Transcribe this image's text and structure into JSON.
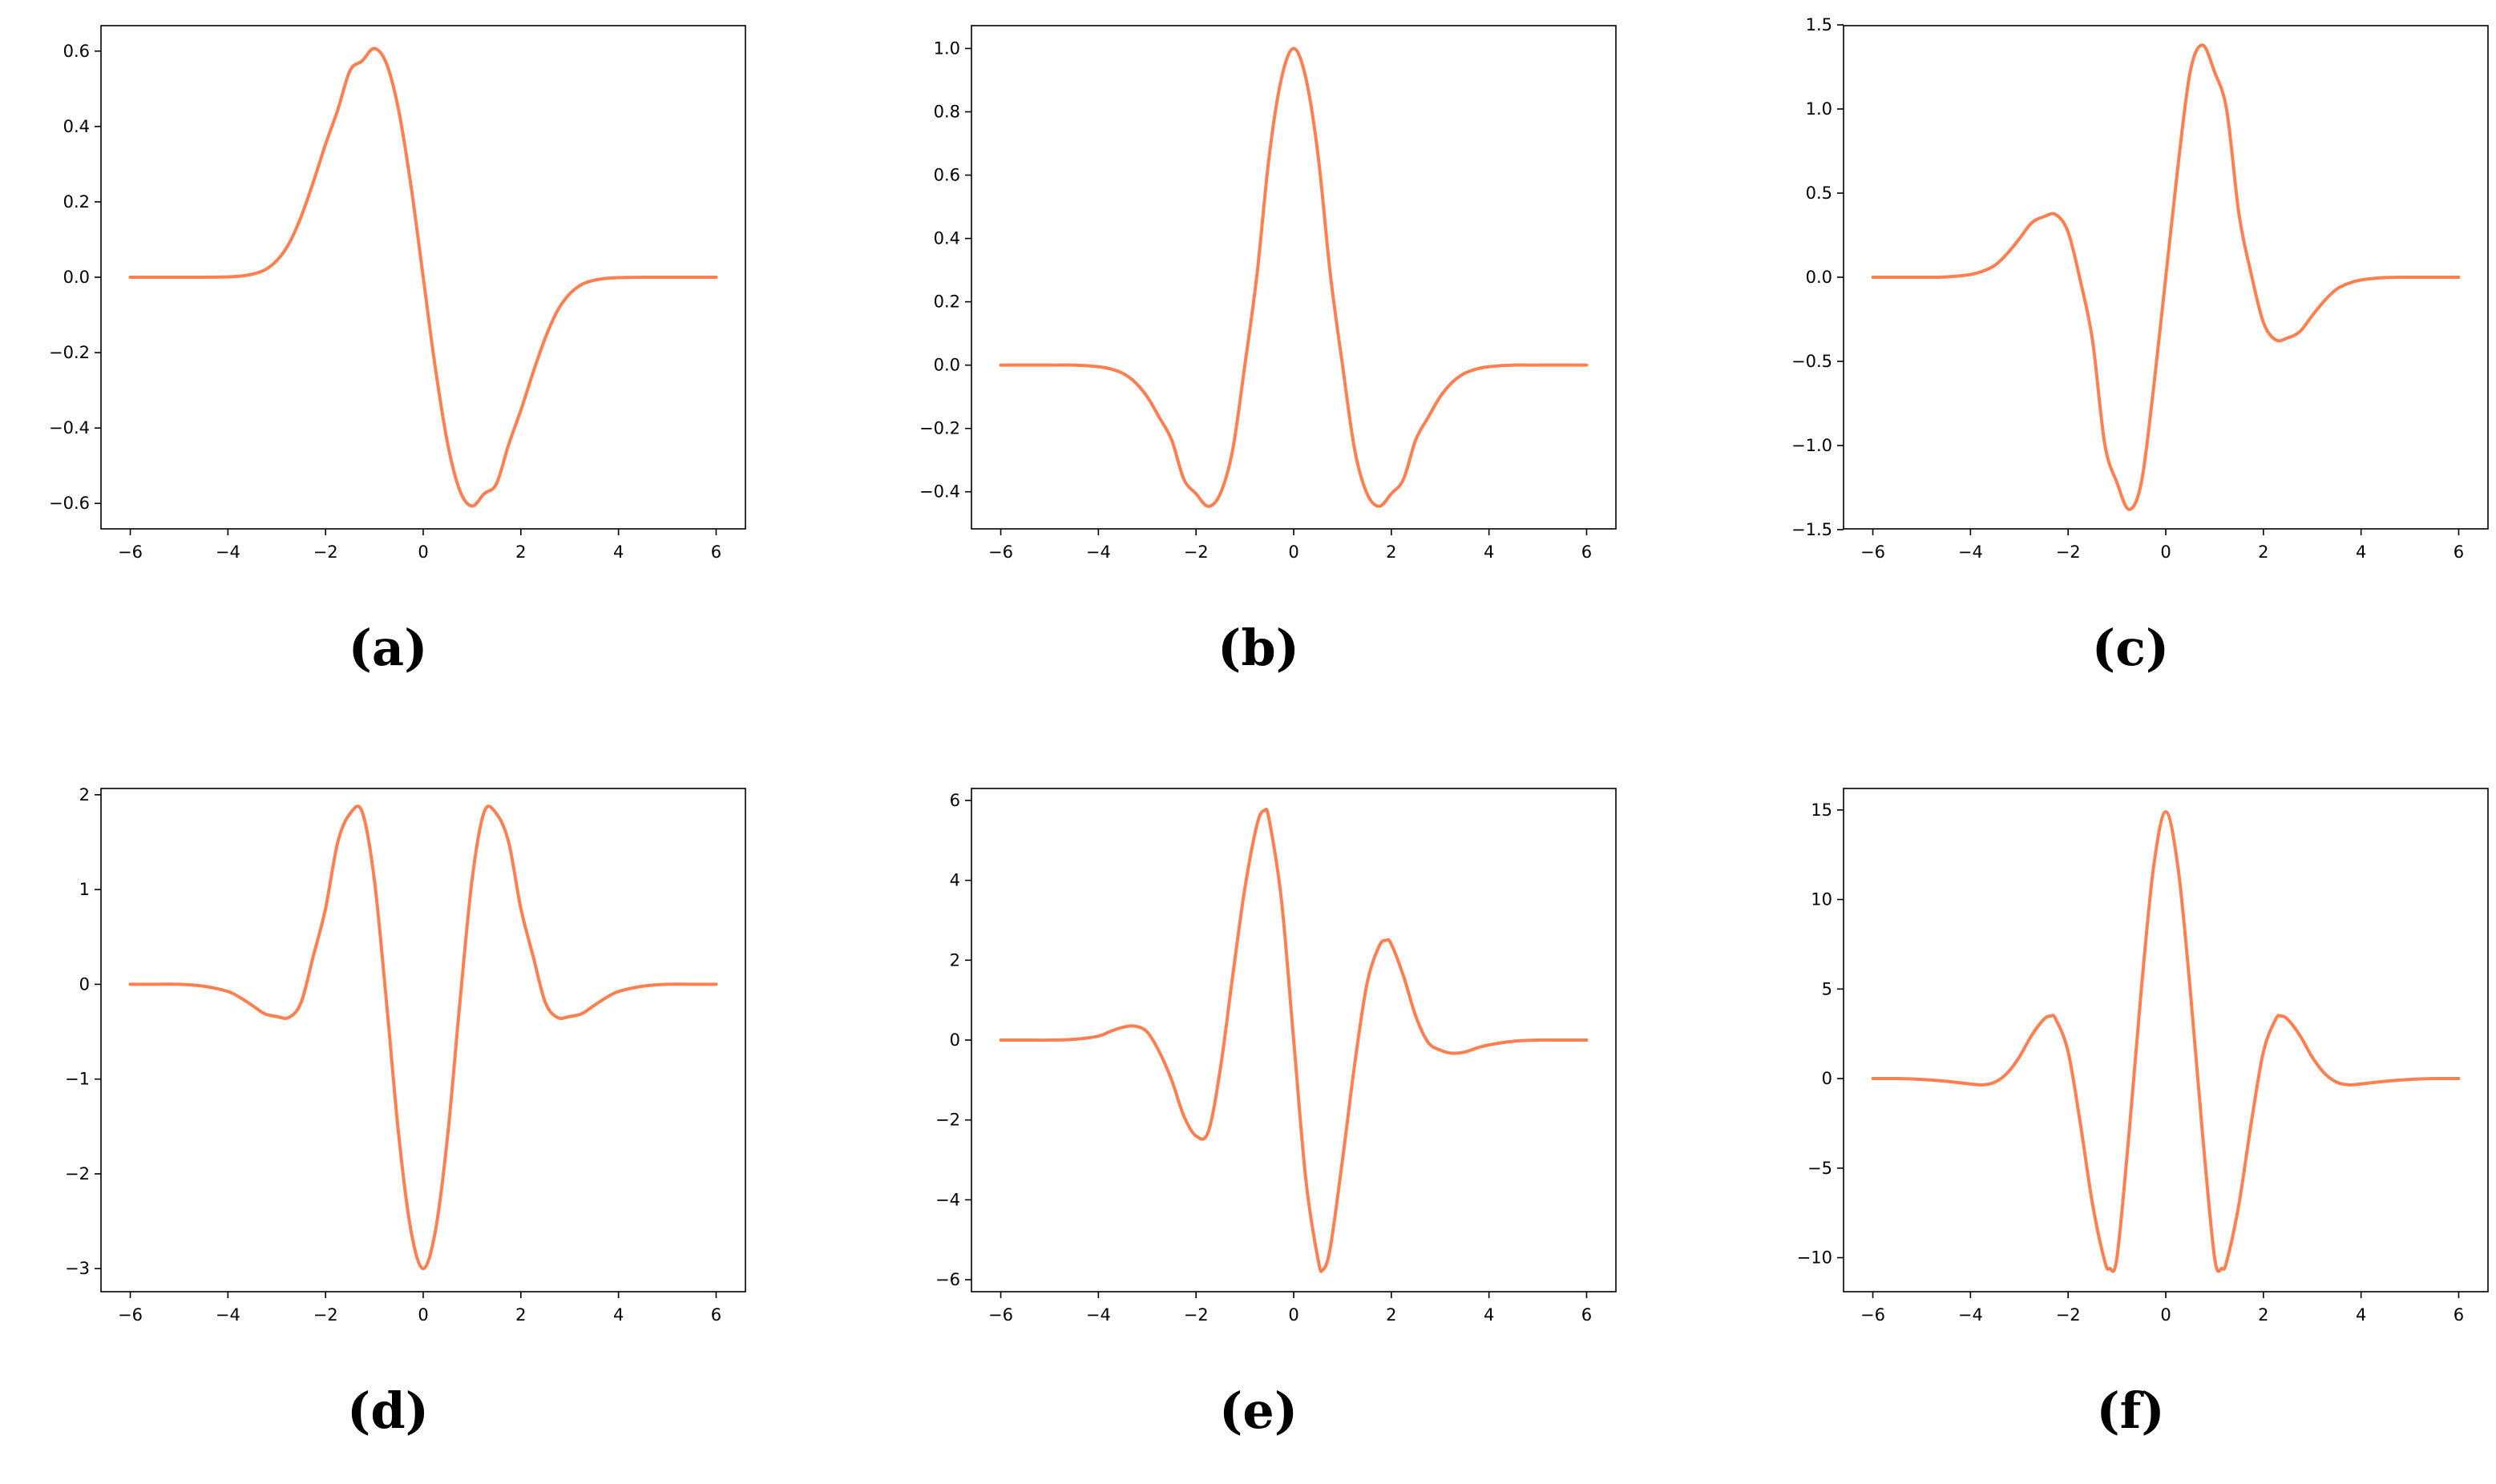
{
  "line_color": "#FF7F50",
  "axis_color": "#000000",
  "chart_data": [
    {
      "type": "line",
      "panel_label": "(a)",
      "xlim": [
        -6.6,
        6.6
      ],
      "ylim": [
        -0.6675,
        0.6675
      ],
      "xticks": [
        -6,
        -4,
        -2,
        0,
        2,
        4,
        6
      ],
      "xtick_labels": [
        "−6",
        "−4",
        "−2",
        "0",
        "2",
        "4",
        "6"
      ],
      "yticks": [
        -0.6,
        -0.4,
        -0.2,
        0.0,
        0.2,
        0.4,
        0.6
      ],
      "ytick_labels": [
        "−0.6",
        "−0.4",
        "−0.2",
        "0.0",
        "0.2",
        "0.4",
        "0.6"
      ],
      "series": [
        {
          "x": [
            -6,
            -5.5,
            -5,
            -4.5,
            -4,
            -3.75,
            -3.5,
            -3.25,
            -3,
            -2.75,
            -2.5,
            -2.25,
            -2,
            -1.75,
            -1.5,
            -1.25,
            -1,
            -0.75,
            -0.5,
            -0.25,
            0,
            0.25,
            0.5,
            0.75,
            1,
            1.25,
            1.5,
            1.75,
            2,
            2.25,
            2.5,
            2.75,
            3,
            3.25,
            3.5,
            3.75,
            4,
            4.5,
            5,
            5.5,
            6
          ],
          "y": [
            0,
            0,
            0,
            0,
            0.001,
            0.003,
            0.008,
            0.019,
            0.044,
            0.089,
            0.161,
            0.253,
            0.353,
            0.444,
            0.548,
            0.574,
            0.607,
            0.566,
            0.441,
            0.242,
            0,
            -0.242,
            -0.441,
            -0.566,
            -0.607,
            -0.574,
            -0.548,
            -0.444,
            -0.353,
            -0.253,
            -0.161,
            -0.089,
            -0.044,
            -0.019,
            -0.008,
            -0.003,
            -0.001,
            0,
            0,
            0,
            0
          ]
        }
      ]
    },
    {
      "type": "line",
      "panel_label": "(b)",
      "xlim": [
        -6.6,
        6.6
      ],
      "ylim": [
        -0.5171,
        1.0721
      ],
      "xticks": [
        -6,
        -4,
        -2,
        0,
        2,
        4,
        6
      ],
      "xtick_labels": [
        "−6",
        "−4",
        "−2",
        "0",
        "2",
        "4",
        "6"
      ],
      "yticks": [
        -0.4,
        -0.2,
        0.0,
        0.2,
        0.4,
        0.6,
        0.8,
        1.0
      ],
      "ytick_labels": [
        "−0.4",
        "−0.2",
        "0.0",
        "0.2",
        "0.4",
        "0.6",
        "0.8",
        "1.0"
      ],
      "series": [
        {
          "x": [
            -6,
            -5.5,
            -5,
            -4.5,
            -4,
            -3.75,
            -3.5,
            -3.25,
            -3,
            -2.75,
            -2.5,
            -2.25,
            -2,
            -1.75,
            -1.5,
            -1.25,
            -1,
            -0.75,
            -0.5,
            -0.25,
            0,
            0.25,
            0.5,
            0.75,
            1,
            1.25,
            1.5,
            1.75,
            2,
            2.25,
            2.5,
            2.75,
            3,
            3.25,
            3.5,
            3.75,
            4,
            4.5,
            5,
            5.5,
            6
          ],
          "y": [
            0,
            0,
            0,
            0,
            -0.005,
            -0.012,
            -0.026,
            -0.054,
            -0.1,
            -0.166,
            -0.236,
            -0.36,
            -0.406,
            -0.446,
            -0.405,
            -0.268,
            0,
            0.288,
            0.662,
            0.906,
            1.0,
            0.906,
            0.662,
            0.288,
            0,
            -0.268,
            -0.405,
            -0.446,
            -0.406,
            -0.36,
            -0.236,
            -0.166,
            -0.1,
            -0.054,
            -0.026,
            -0.012,
            -0.005,
            0,
            0,
            0,
            0
          ]
        }
      ]
    },
    {
      "type": "line",
      "panel_label": "(c)",
      "xlim": [
        -6.6,
        6.6
      ],
      "ylim": [
        -1.4954,
        1.4954
      ],
      "xticks": [
        -6,
        -4,
        -2,
        0,
        2,
        4,
        6
      ],
      "xtick_labels": [
        "−6",
        "−4",
        "−2",
        "0",
        "2",
        "4",
        "6"
      ],
      "yticks": [
        -1.5,
        -1.0,
        -0.5,
        0.0,
        0.5,
        1.0,
        1.5
      ],
      "ytick_labels": [
        "−1.5",
        "−1.0",
        "−0.5",
        "0.0",
        "0.5",
        "1.0",
        "1.5"
      ],
      "series": [
        {
          "x": [
            -6,
            -5.5,
            -5,
            -4.5,
            -4,
            -3.75,
            -3.5,
            -3.25,
            -3,
            -2.75,
            -2.5,
            -2.25,
            -2,
            -1.75,
            -1.5,
            -1.25,
            -1,
            -0.75,
            -0.5,
            -0.25,
            0,
            0.25,
            0.5,
            0.75,
            1,
            1.25,
            1.5,
            1.75,
            2,
            2.25,
            2.5,
            2.75,
            3,
            3.25,
            3.5,
            3.75,
            4,
            4.5,
            5,
            5.5,
            6
          ],
          "y": [
            0,
            0,
            0,
            0.002,
            0.016,
            0.036,
            0.071,
            0.14,
            0.228,
            0.322,
            0.36,
            0.372,
            0.268,
            -0.02,
            -0.375,
            -0.99,
            -1.22,
            -1.38,
            -1.22,
            -0.66,
            0,
            0.66,
            1.22,
            1.38,
            1.22,
            0.99,
            0.375,
            0.02,
            -0.268,
            -0.372,
            -0.36,
            -0.322,
            -0.228,
            -0.14,
            -0.071,
            -0.036,
            -0.016,
            -0.002,
            0,
            0,
            0
          ]
        }
      ]
    },
    {
      "type": "line",
      "panel_label": "(d)",
      "xlim": [
        -6.6,
        6.6
      ],
      "ylim": [
        -3.2434,
        2.0664
      ],
      "xticks": [
        -6,
        -4,
        -2,
        0,
        2,
        4,
        6
      ],
      "xtick_labels": [
        "−6",
        "−4",
        "−2",
        "0",
        "2",
        "4",
        "6"
      ],
      "yticks": [
        -3,
        -2,
        -1,
        0,
        1,
        2
      ],
      "ytick_labels": [
        "−3",
        "−2",
        "−1",
        "0",
        "1",
        "2"
      ],
      "series": [
        {
          "x": [
            -6,
            -5.5,
            -5,
            -4.5,
            -4,
            -3.75,
            -3.5,
            -3.25,
            -3,
            -2.75,
            -2.5,
            -2.25,
            -2,
            -1.75,
            -1.5,
            -1.25,
            -1,
            -0.75,
            -0.5,
            -0.25,
            0,
            0.25,
            0.5,
            0.75,
            1,
            1.25,
            1.5,
            1.75,
            2,
            2.25,
            2.5,
            2.75,
            3,
            3.25,
            3.5,
            3.75,
            4,
            4.5,
            5,
            5.5,
            6
          ],
          "y": [
            0,
            0,
            0,
            -0.02,
            -0.076,
            -0.14,
            -0.223,
            -0.31,
            -0.34,
            -0.35,
            -0.19,
            0.3,
            0.8,
            1.5,
            1.8,
            1.82,
            1.1,
            -0.2,
            -1.6,
            -2.6,
            -3.0,
            -2.6,
            -1.6,
            -0.2,
            1.1,
            1.82,
            1.8,
            1.5,
            0.8,
            0.3,
            -0.19,
            -0.35,
            -0.34,
            -0.31,
            -0.223,
            -0.14,
            -0.076,
            -0.02,
            0,
            0,
            0
          ]
        }
      ]
    },
    {
      "type": "line",
      "panel_label": "(e)",
      "xlim": [
        -6.6,
        6.6
      ],
      "ylim": [
        -6.3,
        6.3
      ],
      "xticks": [
        -6,
        -4,
        -2,
        0,
        2,
        4,
        6
      ],
      "xtick_labels": [
        "−6",
        "−4",
        "−2",
        "0",
        "2",
        "4",
        "6"
      ],
      "yticks": [
        -6,
        -4,
        -2,
        0,
        2,
        4,
        6
      ],
      "ytick_labels": [
        "−6",
        "−4",
        "−2",
        "0",
        "2",
        "4",
        "6"
      ],
      "series": [
        {
          "x": [
            -6,
            -5.5,
            -5,
            -4.5,
            -4,
            -3.75,
            -3.5,
            -3.25,
            -3,
            -2.75,
            -2.5,
            -2.25,
            -2,
            -1.75,
            -1.5,
            -1.25,
            -1,
            -0.75,
            -0.6,
            -0.5,
            -0.25,
            0,
            0.25,
            0.5,
            0.6,
            0.75,
            1,
            1.25,
            1.5,
            1.75,
            1.9,
            2,
            2.25,
            2.5,
            2.75,
            3,
            3.25,
            3.5,
            3.75,
            4,
            4.5,
            5,
            5.5,
            6
          ],
          "y": [
            0,
            0,
            0,
            0.02,
            0.1,
            0.22,
            0.32,
            0.35,
            0.2,
            -0.3,
            -1.0,
            -1.9,
            -2.4,
            -2.3,
            -0.7,
            1.6,
            3.8,
            5.4,
            5.75,
            5.5,
            3.5,
            0,
            -3.5,
            -5.5,
            -5.75,
            -5.2,
            -3.0,
            -0.6,
            1.4,
            2.35,
            2.5,
            2.4,
            1.6,
            0.6,
            -0.05,
            -0.25,
            -0.33,
            -0.3,
            -0.2,
            -0.12,
            -0.03,
            0,
            0,
            0
          ]
        }
      ]
    },
    {
      "type": "line",
      "panel_label": "(f)",
      "xlim": [
        -6.6,
        6.6
      ],
      "ylim": [
        -11.9,
        16.2
      ],
      "xticks": [
        -6,
        -4,
        -2,
        0,
        2,
        4,
        6
      ],
      "xtick_labels": [
        "−6",
        "−4",
        "−2",
        "0",
        "2",
        "4",
        "6"
      ],
      "yticks": [
        -10,
        -5,
        0,
        5,
        10,
        15
      ],
      "ytick_labels": [
        "−10",
        "−5",
        "0",
        "5",
        "10",
        "15"
      ],
      "series": [
        {
          "x": [
            -6,
            -5.5,
            -5,
            -4.5,
            -4,
            -3.75,
            -3.5,
            -3.25,
            -3,
            -2.75,
            -2.5,
            -2.35,
            -2.25,
            -2,
            -1.75,
            -1.5,
            -1.25,
            -1.15,
            -1,
            -0.75,
            -0.5,
            -0.25,
            0,
            0.25,
            0.5,
            0.75,
            1,
            1.15,
            1.25,
            1.5,
            1.75,
            2,
            2.25,
            2.35,
            2.5,
            2.75,
            3,
            3.25,
            3.5,
            3.75,
            4,
            4.5,
            5,
            5.5,
            6
          ],
          "y": [
            0,
            0,
            -0.05,
            -0.15,
            -0.3,
            -0.35,
            -0.2,
            0.3,
            1.2,
            2.4,
            3.3,
            3.5,
            3.3,
            1.5,
            -2.5,
            -7.0,
            -10.2,
            -10.6,
            -10.0,
            -3.0,
            5.0,
            11.8,
            14.9,
            11.8,
            5.0,
            -3.0,
            -10.0,
            -10.6,
            -10.2,
            -7.0,
            -2.5,
            1.5,
            3.3,
            3.5,
            3.3,
            2.4,
            1.2,
            0.3,
            -0.2,
            -0.35,
            -0.3,
            -0.15,
            -0.05,
            0,
            0
          ]
        }
      ]
    }
  ]
}
